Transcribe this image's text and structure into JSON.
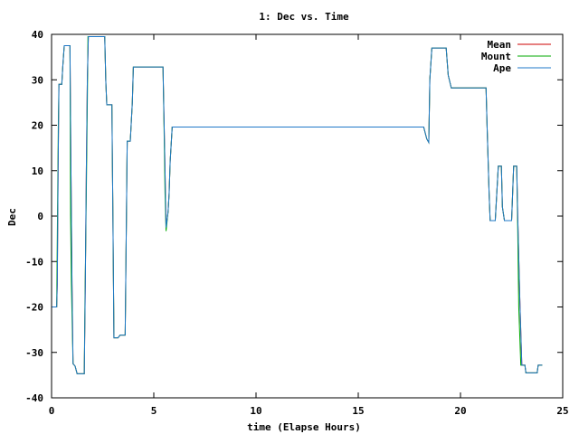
{
  "chart_data": {
    "type": "line",
    "title": "1: Dec vs. Time",
    "xlabel": "time (Elapse Hours)",
    "ylabel": "Dec",
    "xlim": [
      0,
      25
    ],
    "ylim": [
      -40,
      40
    ],
    "xticks": [
      0,
      5,
      10,
      15,
      20,
      25
    ],
    "yticks": [
      -40,
      -30,
      -20,
      -10,
      0,
      10,
      20,
      30,
      40
    ],
    "grid": false,
    "legend_position": "top-right",
    "series": [
      {
        "name": "Mean",
        "color": "#cc0000",
        "points": [
          [
            0,
            -20
          ],
          [
            0.25,
            -20
          ],
          [
            0.28,
            -15
          ],
          [
            0.32,
            10
          ],
          [
            0.36,
            29
          ],
          [
            0.5,
            29
          ],
          [
            0.55,
            33
          ],
          [
            0.62,
            37.5
          ],
          [
            0.9,
            37.5
          ],
          [
            0.95,
            10
          ],
          [
            1.0,
            -15
          ],
          [
            1.05,
            -32.5
          ],
          [
            1.15,
            -33
          ],
          [
            1.25,
            -34.7
          ],
          [
            1.6,
            -34.7
          ],
          [
            1.65,
            -15
          ],
          [
            1.7,
            10
          ],
          [
            1.75,
            30
          ],
          [
            1.8,
            39.5
          ],
          [
            2.6,
            39.5
          ],
          [
            2.65,
            30
          ],
          [
            2.7,
            24.5
          ],
          [
            2.95,
            24.5
          ],
          [
            3.0,
            0
          ],
          [
            3.05,
            -26.8
          ],
          [
            3.25,
            -26.8
          ],
          [
            3.35,
            -26.2
          ],
          [
            3.6,
            -26.2
          ],
          [
            3.65,
            -5
          ],
          [
            3.7,
            16.5
          ],
          [
            3.85,
            16.5
          ],
          [
            3.95,
            25
          ],
          [
            4.0,
            32.8
          ],
          [
            5.45,
            32.8
          ],
          [
            5.55,
            10
          ],
          [
            5.6,
            -2.5
          ],
          [
            5.7,
            1
          ],
          [
            5.75,
            5
          ],
          [
            5.8,
            12
          ],
          [
            5.9,
            19.6
          ],
          [
            6.1,
            19.6
          ],
          [
            18.2,
            19.6
          ],
          [
            18.35,
            17
          ],
          [
            18.45,
            16.2
          ],
          [
            18.5,
            30
          ],
          [
            18.6,
            37
          ],
          [
            19.3,
            37
          ],
          [
            19.4,
            31
          ],
          [
            19.55,
            28.2
          ],
          [
            21.25,
            28.2
          ],
          [
            21.3,
            20
          ],
          [
            21.4,
            5
          ],
          [
            21.45,
            -1
          ],
          [
            21.7,
            -1
          ],
          [
            21.85,
            11
          ],
          [
            22.0,
            11
          ],
          [
            22.05,
            2
          ],
          [
            22.15,
            -1
          ],
          [
            22.5,
            -1
          ],
          [
            22.6,
            11
          ],
          [
            22.75,
            11
          ],
          [
            22.8,
            0
          ],
          [
            22.9,
            -18
          ],
          [
            23.0,
            -32.8
          ],
          [
            23.15,
            -32.8
          ],
          [
            23.2,
            -34.5
          ],
          [
            23.75,
            -34.5
          ],
          [
            23.8,
            -32.8
          ],
          [
            24.0,
            -32.8
          ]
        ]
      },
      {
        "name": "Mount",
        "color": "#00aa00",
        "points": [
          [
            0,
            -20
          ],
          [
            0.25,
            -20
          ],
          [
            0.27,
            -10
          ],
          [
            0.3,
            5
          ],
          [
            0.33,
            20
          ],
          [
            0.36,
            29
          ],
          [
            0.5,
            29
          ],
          [
            0.55,
            33
          ],
          [
            0.62,
            37.5
          ],
          [
            0.9,
            37.5
          ],
          [
            0.93,
            0
          ],
          [
            0.97,
            -15
          ],
          [
            1.05,
            -32.5
          ],
          [
            1.15,
            -33
          ],
          [
            1.25,
            -34.7
          ],
          [
            1.6,
            -34.7
          ],
          [
            1.63,
            -20
          ],
          [
            1.7,
            5
          ],
          [
            1.75,
            25
          ],
          [
            1.78,
            39.5
          ],
          [
            2.6,
            39.5
          ],
          [
            2.65,
            30
          ],
          [
            2.7,
            24.5
          ],
          [
            2.95,
            24.5
          ],
          [
            3.0,
            0
          ],
          [
            3.05,
            -26.8
          ],
          [
            3.25,
            -26.8
          ],
          [
            3.35,
            -26.2
          ],
          [
            3.6,
            -26.2
          ],
          [
            3.65,
            -5
          ],
          [
            3.7,
            16.5
          ],
          [
            3.85,
            16.5
          ],
          [
            3.95,
            25
          ],
          [
            4.0,
            32.8
          ],
          [
            5.45,
            32.8
          ],
          [
            5.5,
            20
          ],
          [
            5.55,
            5
          ],
          [
            5.6,
            -3.3
          ],
          [
            5.7,
            1
          ],
          [
            5.75,
            5
          ],
          [
            5.8,
            12
          ],
          [
            5.9,
            19.6
          ],
          [
            6.1,
            19.6
          ],
          [
            18.2,
            19.6
          ],
          [
            18.35,
            17
          ],
          [
            18.45,
            16.2
          ],
          [
            18.5,
            30
          ],
          [
            18.6,
            37
          ],
          [
            19.3,
            37
          ],
          [
            19.4,
            31
          ],
          [
            19.55,
            28.2
          ],
          [
            21.25,
            28.2
          ],
          [
            21.3,
            20
          ],
          [
            21.4,
            5
          ],
          [
            21.45,
            -1
          ],
          [
            21.7,
            -1
          ],
          [
            21.85,
            11
          ],
          [
            22.0,
            11
          ],
          [
            22.05,
            2
          ],
          [
            22.15,
            -1
          ],
          [
            22.5,
            -1
          ],
          [
            22.6,
            11
          ],
          [
            22.75,
            11
          ],
          [
            22.8,
            -3
          ],
          [
            22.85,
            -20
          ],
          [
            22.95,
            -32.8
          ],
          [
            23.15,
            -32.8
          ],
          [
            23.2,
            -34.5
          ],
          [
            23.75,
            -34.5
          ],
          [
            23.8,
            -32.8
          ],
          [
            24.0,
            -32.8
          ]
        ]
      },
      {
        "name": "Ape",
        "color": "#1f78c8",
        "points": [
          [
            0,
            -20
          ],
          [
            0.25,
            -20
          ],
          [
            0.28,
            -15
          ],
          [
            0.32,
            10
          ],
          [
            0.36,
            29
          ],
          [
            0.5,
            29
          ],
          [
            0.55,
            33
          ],
          [
            0.62,
            37.5
          ],
          [
            0.9,
            37.5
          ],
          [
            0.95,
            10
          ],
          [
            1.0,
            -15
          ],
          [
            1.05,
            -32.5
          ],
          [
            1.15,
            -33
          ],
          [
            1.25,
            -34.7
          ],
          [
            1.6,
            -34.7
          ],
          [
            1.65,
            -15
          ],
          [
            1.7,
            10
          ],
          [
            1.75,
            30
          ],
          [
            1.8,
            39.5
          ],
          [
            2.6,
            39.5
          ],
          [
            2.65,
            30
          ],
          [
            2.7,
            24.5
          ],
          [
            2.95,
            24.5
          ],
          [
            3.0,
            0
          ],
          [
            3.05,
            -26.8
          ],
          [
            3.25,
            -26.8
          ],
          [
            3.35,
            -26.2
          ],
          [
            3.6,
            -26.2
          ],
          [
            3.65,
            -5
          ],
          [
            3.7,
            16.5
          ],
          [
            3.85,
            16.5
          ],
          [
            3.95,
            25
          ],
          [
            4.0,
            32.8
          ],
          [
            5.45,
            32.8
          ],
          [
            5.55,
            10
          ],
          [
            5.6,
            -2.5
          ],
          [
            5.7,
            1
          ],
          [
            5.75,
            5
          ],
          [
            5.8,
            12
          ],
          [
            5.9,
            19.6
          ],
          [
            6.1,
            19.6
          ],
          [
            18.2,
            19.6
          ],
          [
            18.35,
            17
          ],
          [
            18.45,
            16.2
          ],
          [
            18.5,
            30
          ],
          [
            18.6,
            37
          ],
          [
            19.3,
            37
          ],
          [
            19.4,
            31
          ],
          [
            19.55,
            28.2
          ],
          [
            21.25,
            28.2
          ],
          [
            21.3,
            20
          ],
          [
            21.4,
            5
          ],
          [
            21.45,
            -1
          ],
          [
            21.7,
            -1
          ],
          [
            21.85,
            11
          ],
          [
            22.0,
            11
          ],
          [
            22.05,
            2
          ],
          [
            22.15,
            -1
          ],
          [
            22.5,
            -1
          ],
          [
            22.6,
            11
          ],
          [
            22.75,
            11
          ],
          [
            22.8,
            0
          ],
          [
            22.9,
            -18
          ],
          [
            23.0,
            -32.8
          ],
          [
            23.15,
            -32.8
          ],
          [
            23.2,
            -34.5
          ],
          [
            23.75,
            -34.5
          ],
          [
            23.8,
            -32.8
          ],
          [
            24.0,
            -32.8
          ]
        ]
      }
    ]
  }
}
